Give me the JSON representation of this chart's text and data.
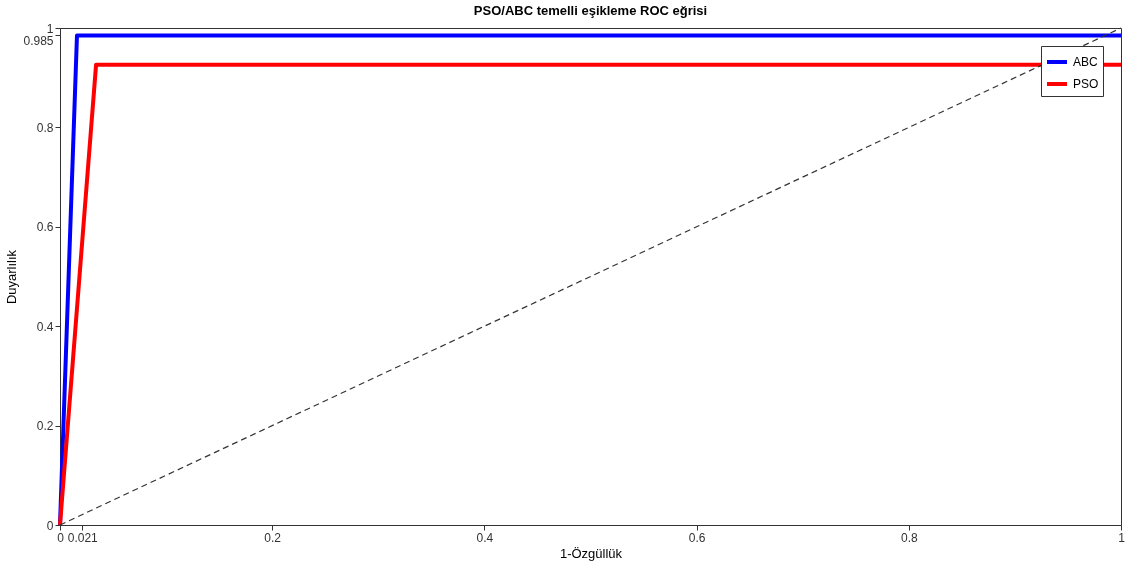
{
  "chart_data": {
    "type": "line",
    "title": "PSO/ABC temelli eşikleme ROC eğrisi",
    "xlabel": "1-Özgüllük",
    "ylabel": "Duyarlılık",
    "xlim": [
      0,
      1
    ],
    "ylim": [
      0,
      1
    ],
    "xticks": [
      0,
      0.021,
      0.2,
      0.4,
      0.6,
      0.8,
      1
    ],
    "yticks": [
      0,
      0.2,
      0.4,
      0.6,
      0.8,
      0.985,
      1
    ],
    "series": [
      {
        "name": "ABC",
        "color": "#0000ff",
        "x": [
          0,
          0.016,
          1
        ],
        "values": [
          0,
          0.985,
          0.985
        ]
      },
      {
        "name": "PSO",
        "color": "#ff0000",
        "x": [
          0,
          0.034,
          1
        ],
        "values": [
          0,
          0.926,
          0.926
        ]
      },
      {
        "color": "#333333",
        "x": [
          0,
          1
        ],
        "values": [
          0,
          1
        ],
        "line_style": "dashed"
      }
    ],
    "legend": "top right",
    "grid": false,
    "marker": "none",
    "line_style": "solid"
  }
}
